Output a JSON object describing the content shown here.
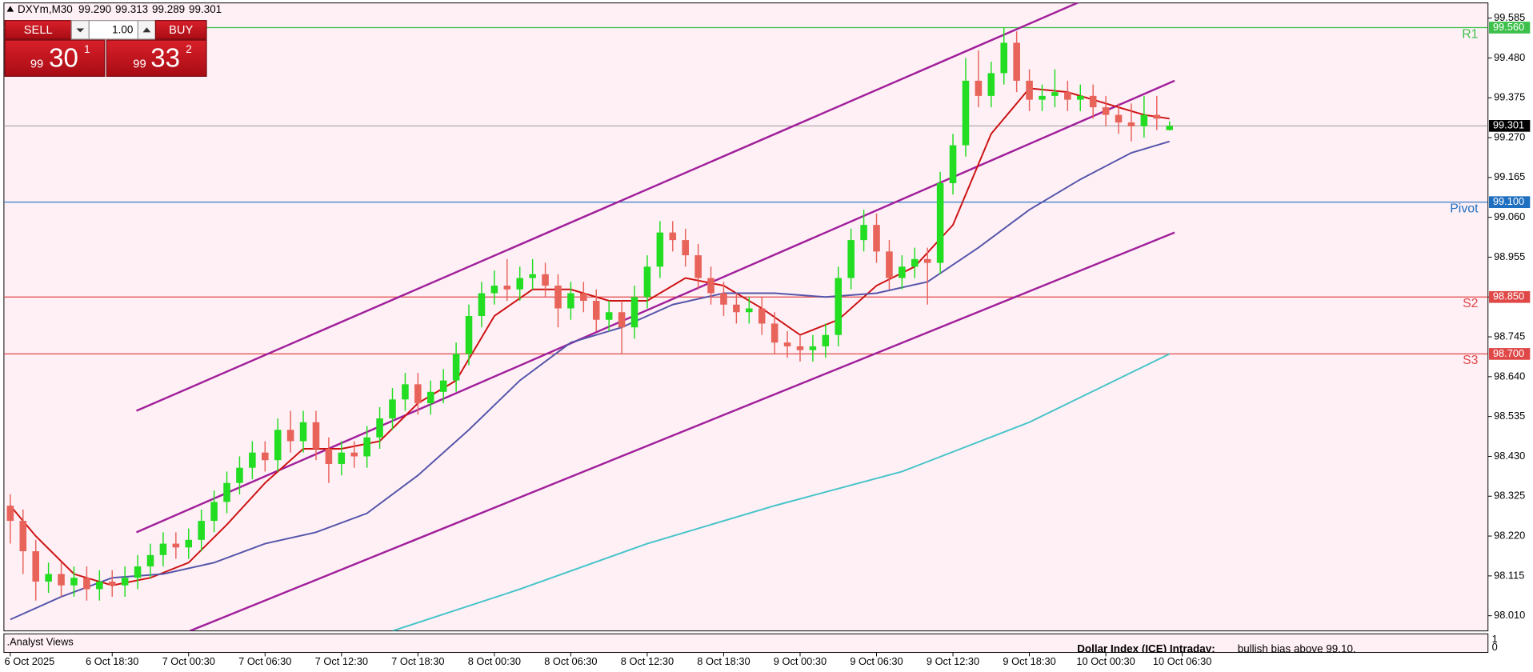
{
  "chart_data": {
    "type": "candlestick",
    "symbol": "DXYm,M30",
    "ohlc_labels": [
      "99.290",
      "99.313",
      "99.289",
      "99.301"
    ],
    "xlim": [
      -0.5,
      116
    ],
    "xticks": [
      {
        "value": 0,
        "label": "6 Oct 2025"
      },
      {
        "value": 8,
        "label": "6 Oct 18:30"
      },
      {
        "value": 14,
        "label": "7 Oct 00:30"
      },
      {
        "value": 20,
        "label": "7 Oct 06:30"
      },
      {
        "value": 26,
        "label": "7 Oct 12:30"
      },
      {
        "value": 32,
        "label": "7 Oct 18:30"
      },
      {
        "value": 38,
        "label": "8 Oct 00:30"
      },
      {
        "value": 44,
        "label": "8 Oct 06:30"
      },
      {
        "value": 50,
        "label": "8 Oct 12:30"
      },
      {
        "value": 56,
        "label": "8 Oct 18:30"
      },
      {
        "value": 62,
        "label": "9 Oct 00:30"
      },
      {
        "value": 68,
        "label": "9 Oct 06:30"
      },
      {
        "value": 74,
        "label": "9 Oct 12:30"
      },
      {
        "value": 80,
        "label": "9 Oct 18:30"
      },
      {
        "value": 86,
        "label": "10 Oct 00:30"
      },
      {
        "value": 92,
        "label": "10 Oct 06:30"
      }
    ],
    "ylim": [
      97.97,
      99.625
    ],
    "yticks": [
      99.585,
      {
        "value": 99.48,
        "label": "99.480"
      },
      99.375,
      {
        "value": 99.27,
        "label": "99.270"
      },
      99.165,
      {
        "value": 99.06,
        "label": "99.060"
      },
      98.955,
      {
        "value": 98.85,
        "label": "98.850"
      },
      98.745,
      {
        "value": 98.64,
        "label": "98.640"
      },
      98.535,
      {
        "value": 98.43,
        "label": "98.430"
      },
      98.325,
      {
        "value": 98.22,
        "label": "98.220"
      },
      98.115,
      {
        "value": 98.01,
        "label": "98.010"
      }
    ],
    "up_color": "#22dd22",
    "down_color": "#e8635a",
    "open": [
      98.3,
      98.26,
      98.18,
      98.1,
      98.12,
      98.09,
      98.11,
      98.08,
      98.1,
      98.09,
      98.11,
      98.14,
      98.17,
      98.2,
      98.19,
      98.21,
      98.26,
      98.31,
      98.36,
      98.4,
      98.44,
      98.42,
      98.5,
      98.47,
      98.52,
      98.45,
      98.41,
      98.44,
      98.43,
      98.48,
      98.53,
      98.58,
      98.62,
      98.57,
      98.6,
      98.63,
      98.7,
      98.8,
      98.86,
      98.88,
      98.87,
      98.9,
      98.91,
      98.88,
      98.82,
      98.86,
      98.84,
      98.79,
      98.81,
      98.77,
      98.85,
      98.93,
      99.02,
      99.0,
      98.96,
      98.9,
      98.86,
      98.83,
      98.81,
      98.82,
      98.78,
      98.73,
      98.72,
      98.71,
      98.72,
      98.75,
      98.9,
      99.0,
      99.04,
      98.97,
      98.9,
      98.93,
      98.95,
      98.94,
      99.15,
      99.25,
      99.42,
      99.38,
      99.44,
      99.52,
      99.42,
      99.37,
      99.38,
      99.39,
      99.37,
      99.38,
      99.35,
      99.33,
      99.31,
      99.3,
      99.33,
      99.29
    ],
    "high": [
      98.33,
      98.29,
      98.21,
      98.15,
      98.15,
      98.14,
      98.14,
      98.13,
      98.13,
      98.14,
      98.17,
      98.2,
      98.23,
      98.23,
      98.24,
      98.29,
      98.34,
      98.39,
      98.43,
      98.47,
      98.47,
      98.53,
      98.55,
      98.55,
      98.55,
      98.48,
      98.47,
      98.47,
      98.51,
      98.56,
      98.61,
      98.65,
      98.65,
      98.63,
      98.66,
      98.73,
      98.83,
      98.89,
      98.92,
      98.95,
      98.93,
      98.95,
      98.94,
      98.91,
      98.89,
      98.89,
      98.87,
      98.84,
      98.84,
      98.88,
      98.96,
      99.05,
      99.05,
      99.03,
      98.99,
      98.93,
      98.89,
      98.86,
      98.85,
      98.85,
      98.81,
      98.76,
      98.75,
      98.75,
      98.78,
      98.93,
      99.03,
      99.08,
      99.07,
      99.0,
      98.96,
      98.98,
      98.98,
      99.18,
      99.28,
      99.48,
      99.5,
      99.47,
      99.56,
      99.55,
      99.45,
      99.41,
      99.45,
      99.42,
      99.41,
      99.41,
      99.38,
      99.36,
      99.36,
      99.38,
      99.38,
      99.313
    ],
    "low": [
      98.2,
      98.12,
      98.05,
      98.07,
      98.06,
      98.06,
      98.05,
      98.05,
      98.06,
      98.06,
      98.08,
      98.11,
      98.14,
      98.16,
      98.16,
      98.18,
      98.23,
      98.28,
      98.33,
      98.37,
      98.39,
      98.39,
      98.44,
      98.44,
      98.42,
      98.36,
      98.38,
      98.4,
      98.4,
      98.45,
      98.5,
      98.55,
      98.54,
      98.54,
      98.57,
      98.6,
      98.67,
      98.77,
      98.83,
      98.84,
      98.84,
      98.87,
      98.85,
      98.77,
      98.79,
      98.81,
      98.76,
      98.76,
      98.7,
      98.74,
      98.82,
      98.9,
      98.97,
      98.93,
      98.87,
      98.83,
      98.8,
      98.78,
      98.78,
      98.75,
      98.7,
      98.69,
      98.68,
      98.68,
      98.69,
      98.72,
      98.87,
      98.97,
      98.94,
      98.87,
      98.87,
      98.9,
      98.83,
      98.91,
      99.12,
      99.22,
      99.35,
      99.35,
      99.41,
      99.39,
      99.34,
      99.34,
      99.35,
      99.34,
      99.34,
      99.32,
      99.3,
      99.28,
      99.26,
      99.27,
      99.29,
      99.289
    ],
    "close": [
      98.26,
      98.18,
      98.1,
      98.12,
      98.09,
      98.11,
      98.08,
      98.1,
      98.09,
      98.11,
      98.14,
      98.17,
      98.2,
      98.19,
      98.21,
      98.26,
      98.31,
      98.36,
      98.4,
      98.44,
      98.42,
      98.5,
      98.47,
      98.52,
      98.45,
      98.41,
      98.44,
      98.43,
      98.48,
      98.53,
      98.58,
      98.62,
      98.57,
      98.6,
      98.63,
      98.7,
      98.8,
      98.86,
      98.88,
      98.87,
      98.9,
      98.91,
      98.88,
      98.82,
      98.86,
      98.84,
      98.79,
      98.81,
      98.77,
      98.85,
      98.93,
      99.02,
      99.0,
      98.96,
      98.9,
      98.86,
      98.83,
      98.81,
      98.82,
      98.78,
      98.73,
      98.72,
      98.71,
      98.72,
      98.75,
      98.9,
      99.0,
      99.04,
      98.97,
      98.9,
      98.93,
      98.95,
      98.94,
      99.15,
      99.25,
      99.42,
      99.38,
      99.44,
      99.52,
      99.42,
      99.37,
      99.38,
      99.39,
      99.37,
      99.38,
      99.35,
      99.33,
      99.31,
      99.3,
      99.33,
      99.32,
      99.301
    ],
    "series": [
      {
        "color": "#cc1111",
        "x": [
          0,
          2,
          5,
          8,
          11,
          14,
          17,
          20,
          23,
          26,
          29,
          32,
          35,
          38,
          41,
          44,
          47,
          50,
          53,
          56,
          59,
          62,
          65,
          68,
          71,
          74,
          77,
          80,
          83,
          86,
          89,
          91
        ],
        "values": [
          98.3,
          98.22,
          98.12,
          98.09,
          98.11,
          98.15,
          98.25,
          98.36,
          98.45,
          98.45,
          98.47,
          98.57,
          98.63,
          98.8,
          98.87,
          98.87,
          98.84,
          98.84,
          98.9,
          98.88,
          98.82,
          98.75,
          98.79,
          98.88,
          98.93,
          99.04,
          99.28,
          99.4,
          99.39,
          99.36,
          99.33,
          99.32
        ]
      },
      {
        "color": "#5555aa",
        "x": [
          0,
          4,
          8,
          12,
          16,
          20,
          24,
          28,
          32,
          36,
          40,
          44,
          48,
          52,
          56,
          60,
          64,
          68,
          72,
          76,
          80,
          84,
          88,
          91
        ],
        "values": [
          98.0,
          98.06,
          98.11,
          98.12,
          98.15,
          98.2,
          98.23,
          98.28,
          98.38,
          98.5,
          98.63,
          98.73,
          98.77,
          98.83,
          98.86,
          98.86,
          98.85,
          98.86,
          98.89,
          98.98,
          99.08,
          99.16,
          99.23,
          99.26
        ]
      },
      {
        "color": "#45c4c8",
        "x": [
          30,
          40,
          50,
          60,
          70,
          80,
          91
        ],
        "values": [
          97.97,
          98.08,
          98.2,
          98.3,
          98.39,
          98.52,
          98.7
        ]
      }
    ],
    "trendlines": [
      {
        "color": "#a0209a",
        "x": [
          9.9,
          84.1
        ],
        "values": [
          98.55,
          99.63
        ]
      },
      {
        "color": "#a0209a",
        "x": [
          9.9,
          91.4
        ],
        "values": [
          98.23,
          99.42
        ]
      },
      {
        "color": "#a0209a",
        "x": [
          14.1,
          91.4
        ],
        "values": [
          97.97,
          99.02
        ]
      }
    ],
    "levels": [
      {
        "label": "R1",
        "value": 99.56,
        "value_label": "99.560",
        "color": "#3cc04a"
      },
      {
        "label": "Pivot",
        "value": 99.1,
        "value_label": "99.100",
        "color": "#1f6fc0"
      },
      {
        "label": "S2",
        "value": 98.85,
        "value_label": "98.850",
        "color": "#e04848"
      },
      {
        "label": "S3",
        "value": 98.7,
        "value_label": "98.700",
        "color": "#e04848"
      }
    ],
    "last_price_color": "#999999"
  },
  "trade_panel": {
    "sell": "SELL",
    "buy": "BUY",
    "lots": "1.00",
    "bid": {
      "big": "99",
      "main": "30",
      "small": "1"
    },
    "ask": {
      "big": "99",
      "main": "33",
      "small": "2"
    }
  },
  "indicator_panel": {
    "name": ".Analyst Views",
    "text_bold": "Dollar Index (ICE) Intraday:",
    "text": "bullish bias above 99.10.",
    "scale_max": "1",
    "scale_min": "0"
  }
}
